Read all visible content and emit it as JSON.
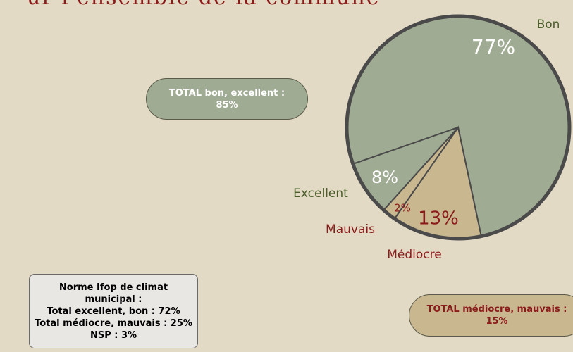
{
  "chart_data": {
    "type": "pie",
    "title": "ur l'ensemble de la commune",
    "categories": [
      "Bon",
      "Médiocre",
      "Mauvais",
      "Excellent"
    ],
    "values": [
      77,
      13,
      2,
      8
    ],
    "value_labels": [
      "77%",
      "13%",
      "2%",
      "8%"
    ],
    "colors": [
      "#9fab92",
      "#c8b78f",
      "#c8b78f",
      "#9fab92"
    ],
    "annotations": [
      {
        "lines": [
          "TOTAL bon, excellent :",
          "85%"
        ]
      },
      {
        "lines": [
          "TOTAL médiocre, mauvais :",
          "15%"
        ]
      },
      {
        "lines": [
          "Norme Ifop de climat",
          "municipal :",
          "Total excellent, bon : 72%",
          "Total médiocre, mauvais : 25%",
          "NSP : 3%"
        ]
      }
    ]
  }
}
